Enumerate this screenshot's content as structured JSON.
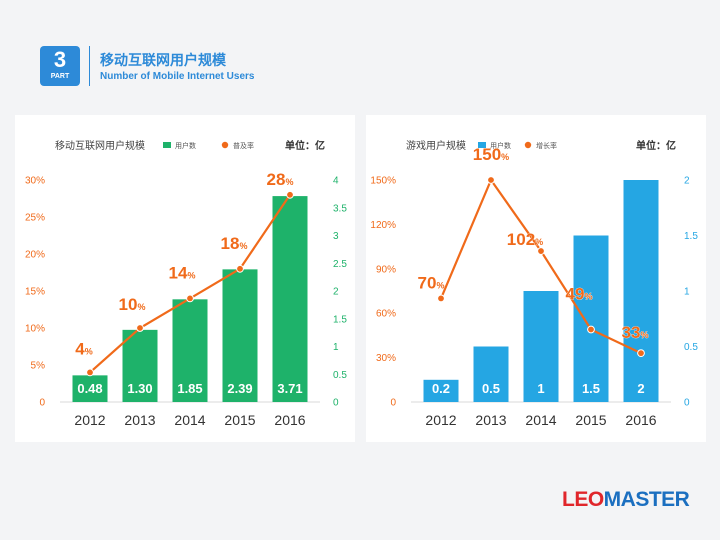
{
  "header": {
    "part_number": "3",
    "part_label": "PART",
    "title_cn": "移动互联网用户规模",
    "title_en": "Number of Mobile Internet Users"
  },
  "logo": {
    "accent": "LEO",
    "rest": "MASTER"
  },
  "chart_data": [
    {
      "type": "bar+line",
      "title": "移动互联网用户规模",
      "unit_label": "单位：亿",
      "legend": {
        "bar": "用户数",
        "line": "普及率"
      },
      "categories": [
        "2012",
        "2013",
        "2014",
        "2015",
        "2016"
      ],
      "bar_values": [
        0.48,
        1.3,
        1.85,
        2.39,
        3.71
      ],
      "bar_labels": [
        "0.48",
        "1.30",
        "1.85",
        "2.39",
        "3.71"
      ],
      "line_values": [
        4,
        10,
        14,
        18,
        28
      ],
      "line_label_numbers": [
        "4",
        "10",
        "14",
        "18",
        "28"
      ],
      "line_label_suffix": "%",
      "left_axis_ticks": [
        "0",
        "5%",
        "10%",
        "15%",
        "20%",
        "25%",
        "30%"
      ],
      "left_axis_max": 30,
      "right_axis_ticks": [
        "0",
        "0.5",
        "1",
        "1.5",
        "2",
        "2.5",
        "3",
        "3.5",
        "4"
      ],
      "right_axis_max": 4,
      "bar_color": "#1eb26a",
      "line_color": "#f06a1a"
    },
    {
      "type": "bar+line",
      "title": "游戏用户规模",
      "unit_label": "单位：亿",
      "legend": {
        "bar": "用户数",
        "line": "增长率"
      },
      "categories": [
        "2012",
        "2013",
        "2014",
        "2015",
        "2016"
      ],
      "bar_values": [
        0.2,
        0.5,
        1,
        1.5,
        2
      ],
      "bar_labels": [
        "0.2",
        "0.5",
        "1",
        "1.5",
        "2"
      ],
      "line_values": [
        70,
        150,
        102,
        49,
        33
      ],
      "line_label_numbers": [
        "70",
        "150",
        "102",
        "49",
        "33"
      ],
      "line_label_suffix": "%",
      "left_axis_ticks": [
        "0",
        "30%",
        "60%",
        "90%",
        "120%",
        "150%"
      ],
      "left_axis_max": 150,
      "right_axis_ticks": [
        "0",
        "0.5",
        "1",
        "1.5",
        "2"
      ],
      "right_axis_max": 2,
      "bar_color": "#25a6e3",
      "line_color": "#f06a1a"
    }
  ]
}
